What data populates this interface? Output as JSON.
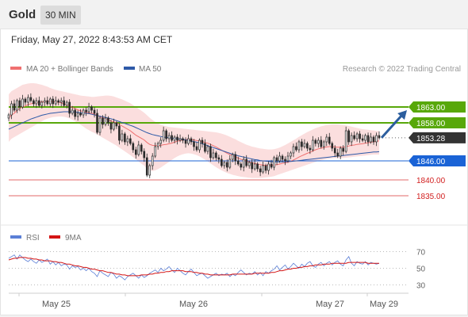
{
  "header": {
    "title": "Gold",
    "timeframe": "30 MIN"
  },
  "timestamp": "Friday, May 27, 2022 8:43:53 AM CET",
  "legend": {
    "ma20_label": "MA 20 + Bollinger Bands",
    "ma50_label": "MA 50",
    "copyright": "Research © 2022 Trading Central"
  },
  "colors": {
    "candle": "#2a2a2a",
    "ma20": "#f07070",
    "bollinger_fill": "#fbdede",
    "ma50": "#2e5aa8",
    "resistance": "#58a80a",
    "pivot": "#1a63d6",
    "support": "#e36a6a",
    "current": "#333333",
    "arrow": "#2c5e9e",
    "rsi": "#5b7fd6",
    "rsi_ma": "#d41515"
  },
  "rsi_legend": {
    "rsi_label": "RSI",
    "ma_label": "9MA"
  },
  "chart_data": [
    {
      "type": "candlestick",
      "ylim": [
        1829,
        1874
      ],
      "x_tick_labels": [
        "May 25",
        "May 26",
        "May 27",
        "May 29"
      ],
      "levels": [
        {
          "value": 1863.0,
          "label": "1863.00",
          "kind": "resistance"
        },
        {
          "value": 1858.0,
          "label": "1858.00",
          "kind": "resistance"
        },
        {
          "value": 1853.28,
          "label": "1853.28",
          "kind": "current"
        },
        {
          "value": 1846.0,
          "label": "1846.00",
          "kind": "pivot"
        },
        {
          "value": 1840.0,
          "label": "1840.00",
          "kind": "support"
        },
        {
          "value": 1835.0,
          "label": "1835.00",
          "kind": "support"
        }
      ],
      "close": [
        1860.5,
        1864.0,
        1862.0,
        1865.0,
        1863.0,
        1865.5,
        1864.5,
        1866.0,
        1865.0,
        1864.0,
        1865.0,
        1863.5,
        1864.5,
        1865.0,
        1864.0,
        1865.5,
        1864.0,
        1865.0,
        1864.5,
        1865.0,
        1863.5,
        1864.5,
        1861.0,
        1862.0,
        1860.0,
        1861.0,
        1860.5,
        1862.0,
        1861.5,
        1863.0,
        1862.0,
        1861.0,
        1855.0,
        1859.5,
        1857.5,
        1859.5,
        1858.0,
        1856.0,
        1858.0,
        1857.0,
        1852.5,
        1854.5,
        1852.0,
        1853.0,
        1851.5,
        1849.5,
        1848.0,
        1851.0,
        1849.0,
        1847.0,
        1841.5,
        1844.5,
        1847.5,
        1850.5,
        1851.5,
        1852.5,
        1855.5,
        1853.0,
        1854.0,
        1852.5,
        1853.5,
        1852.5,
        1853.0,
        1852.5,
        1851.5,
        1853.0,
        1852.0,
        1850.5,
        1849.5,
        1852.5,
        1851.5,
        1849.0,
        1850.5,
        1847.0,
        1848.5,
        1847.0,
        1846.5,
        1844.5,
        1845.5,
        1844.0,
        1846.5,
        1848.0,
        1846.0,
        1845.0,
        1844.0,
        1846.5,
        1844.5,
        1845.5,
        1843.5,
        1845.0,
        1843.5,
        1842.5,
        1844.5,
        1843.0,
        1845.0,
        1844.0,
        1847.0,
        1846.0,
        1847.5,
        1846.5,
        1846.0,
        1847.5,
        1848.5,
        1850.5,
        1849.5,
        1852.0,
        1850.5,
        1851.5,
        1850.0,
        1849.5,
        1852.5,
        1851.5,
        1852.5,
        1850.5,
        1852.0,
        1853.5,
        1851.5,
        1850.0,
        1848.5,
        1847.5,
        1850.0,
        1849.0,
        1855.5,
        1852.0,
        1854.0,
        1853.0,
        1854.5,
        1853.0,
        1852.5,
        1854.0,
        1852.0,
        1853.5,
        1852.0,
        1854.0,
        1853.28
      ],
      "ma20": [
        1859.5,
        1860.5,
        1861.0,
        1862.0,
        1862.5,
        1863.0,
        1863.3,
        1863.8,
        1864.0,
        1864.2,
        1864.4,
        1864.5,
        1864.6,
        1864.7,
        1864.8,
        1864.8,
        1864.7,
        1864.6,
        1864.5,
        1864.3,
        1864.0,
        1863.7,
        1863.3,
        1862.9,
        1862.5,
        1862.1,
        1861.8,
        1861.5,
        1861.3,
        1861.2,
        1861.0,
        1860.8,
        1860.3,
        1860.0,
        1859.6,
        1859.3,
        1859.0,
        1858.6,
        1858.3,
        1858.0,
        1857.5,
        1857.0,
        1856.5,
        1856.0,
        1855.5,
        1854.8,
        1854.1,
        1853.6,
        1853.1,
        1852.6,
        1851.8,
        1851.2,
        1850.9,
        1850.8,
        1850.8,
        1850.9,
        1851.1,
        1851.2,
        1851.4,
        1851.6,
        1851.9,
        1852.2,
        1852.4,
        1852.6,
        1852.7,
        1852.8,
        1852.7,
        1852.6,
        1852.4,
        1852.3,
        1852.1,
        1851.8,
        1851.6,
        1851.2,
        1850.8,
        1850.4,
        1849.9,
        1849.4,
        1848.9,
        1848.4,
        1848.0,
        1847.7,
        1847.3,
        1846.9,
        1846.5,
        1846.2,
        1845.9,
        1845.7,
        1845.4,
        1845.2,
        1845.0,
        1844.8,
        1844.7,
        1844.6,
        1844.6,
        1844.6,
        1844.7,
        1844.8,
        1845.0,
        1845.2,
        1845.4,
        1845.6,
        1845.9,
        1846.3,
        1846.7,
        1847.2,
        1847.6,
        1848.0,
        1848.4,
        1848.7,
        1849.1,
        1849.5,
        1849.8,
        1850.0,
        1850.2,
        1850.4,
        1850.5,
        1850.5,
        1850.4,
        1850.3,
        1850.3,
        1850.3,
        1850.5,
        1850.7,
        1850.9,
        1851.0,
        1851.2,
        1851.3,
        1851.4,
        1851.6,
        1851.7,
        1851.9,
        1852.0,
        1852.2,
        1852.3
      ],
      "bollinger_upper": [
        1867.0,
        1868.0,
        1868.5,
        1869.0,
        1869.5,
        1870.0,
        1870.2,
        1870.4,
        1870.5,
        1870.5,
        1870.4,
        1870.2,
        1870.0,
        1869.7,
        1869.4,
        1869.0,
        1868.7,
        1868.4,
        1868.2,
        1868.0,
        1867.8,
        1867.6,
        1867.4,
        1867.2,
        1867.0,
        1866.8,
        1866.6,
        1866.5,
        1866.4,
        1866.3,
        1866.2,
        1866.2,
        1866.3,
        1866.4,
        1866.5,
        1866.6,
        1866.6,
        1866.5,
        1866.3,
        1866.0,
        1865.7,
        1865.4,
        1865.0,
        1864.6,
        1864.2,
        1863.6,
        1863.0,
        1862.4,
        1861.8,
        1861.2,
        1860.4,
        1859.6,
        1858.9,
        1858.3,
        1857.8,
        1857.4,
        1857.1,
        1856.9,
        1856.7,
        1856.6,
        1856.5,
        1856.4,
        1856.3,
        1856.2,
        1856.1,
        1856.0,
        1855.9,
        1855.8,
        1855.7,
        1855.6,
        1855.5,
        1855.4,
        1855.3,
        1855.2,
        1855.1,
        1855.0,
        1854.8,
        1854.6,
        1854.3,
        1854.0,
        1853.6,
        1853.2,
        1852.8,
        1852.3,
        1851.9,
        1851.5,
        1851.1,
        1850.8,
        1850.5,
        1850.3,
        1850.1,
        1849.9,
        1849.8,
        1849.7,
        1849.6,
        1849.6,
        1849.7,
        1849.9,
        1850.2,
        1850.6,
        1851.0,
        1851.5,
        1852.0,
        1852.5,
        1853.0,
        1853.6,
        1854.1,
        1854.6,
        1855.1,
        1855.5,
        1855.9,
        1856.3,
        1856.6,
        1856.9,
        1857.1,
        1857.3,
        1857.4,
        1857.5,
        1857.5,
        1857.5,
        1857.4,
        1857.3,
        1857.2,
        1857.0,
        1856.8,
        1856.6,
        1856.4,
        1856.2,
        1856.0,
        1855.9,
        1855.8,
        1855.7,
        1855.6,
        1855.5,
        1855.4
      ],
      "bollinger_lower": [
        1852.0,
        1853.0,
        1853.5,
        1854.0,
        1854.5,
        1855.0,
        1855.5,
        1856.0,
        1856.5,
        1857.0,
        1857.5,
        1858.0,
        1858.5,
        1859.0,
        1859.3,
        1859.6,
        1859.8,
        1859.9,
        1860.0,
        1860.0,
        1859.9,
        1859.7,
        1859.4,
        1859.0,
        1858.5,
        1858.0,
        1857.4,
        1856.8,
        1856.2,
        1855.7,
        1855.2,
        1854.8,
        1854.3,
        1853.8,
        1853.3,
        1852.8,
        1852.3,
        1851.8,
        1851.3,
        1850.8,
        1850.2,
        1849.6,
        1849.0,
        1848.4,
        1847.8,
        1847.2,
        1846.5,
        1845.8,
        1845.1,
        1844.5,
        1843.5,
        1843.0,
        1842.8,
        1843.0,
        1843.4,
        1843.9,
        1844.5,
        1845.1,
        1845.7,
        1846.3,
        1846.9,
        1847.4,
        1847.8,
        1848.1,
        1848.3,
        1848.4,
        1848.3,
        1848.1,
        1847.8,
        1847.4,
        1846.9,
        1846.4,
        1845.8,
        1845.2,
        1844.6,
        1844.0,
        1843.5,
        1843.0,
        1842.6,
        1842.2,
        1841.9,
        1841.6,
        1841.4,
        1841.2,
        1841.0,
        1840.9,
        1840.8,
        1840.7,
        1840.6,
        1840.6,
        1840.6,
        1840.6,
        1840.7,
        1840.8,
        1840.9,
        1841.0,
        1841.2,
        1841.5,
        1841.8,
        1842.1,
        1842.4,
        1842.7,
        1843.0,
        1843.3,
        1843.6,
        1843.9,
        1844.2,
        1844.5,
        1844.8,
        1845.1,
        1845.4,
        1845.7,
        1846.0,
        1846.2,
        1846.4,
        1846.6,
        1846.7,
        1846.8,
        1846.9,
        1846.9,
        1846.9,
        1846.9,
        1847.0,
        1847.1,
        1847.2,
        1847.3,
        1847.4,
        1847.5,
        1847.6,
        1847.7,
        1847.8,
        1847.9,
        1848.0,
        1848.0,
        1848.0
      ],
      "ma50": [
        1856.0,
        1856.4,
        1856.8,
        1857.2,
        1857.6,
        1858.0,
        1858.4,
        1858.8,
        1859.2,
        1859.5,
        1859.8,
        1860.1,
        1860.4,
        1860.6,
        1860.8,
        1861.0,
        1861.1,
        1861.2,
        1861.3,
        1861.4,
        1861.5,
        1861.5,
        1861.5,
        1861.5,
        1861.4,
        1861.3,
        1861.2,
        1861.1,
        1861.0,
        1860.9,
        1860.7,
        1860.5,
        1860.3,
        1860.1,
        1859.9,
        1859.7,
        1859.5,
        1859.3,
        1859.0,
        1858.7,
        1858.4,
        1858.1,
        1857.8,
        1857.5,
        1857.2,
        1856.9,
        1856.5,
        1856.1,
        1855.7,
        1855.3,
        1854.9,
        1854.6,
        1854.3,
        1854.1,
        1853.9,
        1853.7,
        1853.5,
        1853.4,
        1853.3,
        1853.2,
        1853.1,
        1853.0,
        1852.9,
        1852.8,
        1852.6,
        1852.5,
        1852.3,
        1852.1,
        1851.9,
        1851.7,
        1851.4,
        1851.1,
        1850.8,
        1850.5,
        1850.2,
        1849.9,
        1849.6,
        1849.3,
        1849.0,
        1848.7,
        1848.4,
        1848.1,
        1847.9,
        1847.6,
        1847.4,
        1847.2,
        1847.0,
        1846.8,
        1846.6,
        1846.4,
        1846.3,
        1846.1,
        1846.0,
        1845.9,
        1845.8,
        1845.7,
        1845.7,
        1845.7,
        1845.7,
        1845.7,
        1845.7,
        1845.8,
        1845.8,
        1845.9,
        1846.0,
        1846.1,
        1846.2,
        1846.3,
        1846.4,
        1846.5,
        1846.6,
        1846.7,
        1846.8,
        1846.9,
        1847.0,
        1847.1,
        1847.2,
        1847.3,
        1847.4,
        1847.5,
        1847.6,
        1847.7,
        1847.8,
        1847.9,
        1848.0,
        1848.1,
        1848.2,
        1848.3,
        1848.4,
        1848.5,
        1848.6,
        1848.7,
        1848.8,
        1848.8,
        1848.9
      ]
    },
    {
      "type": "line",
      "title": "RSI",
      "ylim": [
        20,
        80
      ],
      "y_ticks": [
        70,
        50,
        30
      ],
      "series": [
        {
          "name": "RSI",
          "values": [
            62,
            64,
            66,
            61,
            66,
            63,
            60,
            58,
            61,
            58,
            56,
            60,
            57,
            59,
            61,
            55,
            58,
            54,
            57,
            53,
            55,
            54,
            49,
            53,
            51,
            52,
            48,
            50,
            47,
            50,
            46,
            44,
            40,
            47,
            44,
            42,
            40,
            45,
            43,
            38,
            41,
            39,
            36,
            40,
            42,
            44,
            41,
            38,
            42,
            39,
            41,
            44,
            46,
            48,
            45,
            50,
            47,
            49,
            52,
            48,
            45,
            50,
            47,
            44,
            42,
            46,
            49,
            45,
            41,
            43,
            44,
            41,
            38,
            40,
            42,
            44,
            41,
            43,
            42,
            44,
            40,
            43,
            41,
            45,
            48,
            45,
            42,
            44,
            43,
            46,
            42,
            45,
            41,
            46,
            44,
            47,
            49,
            53,
            48,
            51,
            54,
            49,
            52,
            56,
            53,
            50,
            55,
            52,
            56,
            58,
            53,
            51,
            55,
            57,
            53,
            56,
            58,
            54,
            57,
            59,
            55,
            53,
            60,
            64,
            56,
            53,
            58,
            56,
            55,
            58,
            54,
            57,
            56,
            55,
            56
          ]
        },
        {
          "name": "9MA",
          "values": [
            60,
            61,
            62,
            62,
            63,
            63,
            63,
            62,
            62,
            61,
            61,
            60,
            60,
            59,
            59,
            59,
            58,
            58,
            57,
            57,
            56,
            55,
            55,
            54,
            53,
            53,
            52,
            51,
            51,
            50,
            49,
            49,
            48,
            47,
            47,
            46,
            45,
            45,
            44,
            43,
            43,
            42,
            42,
            41,
            41,
            41,
            41,
            41,
            42,
            42,
            42,
            43,
            43,
            44,
            44,
            45,
            45,
            46,
            46,
            47,
            47,
            47,
            47,
            47,
            46,
            46,
            46,
            45,
            45,
            44,
            44,
            43,
            43,
            42,
            42,
            42,
            42,
            42,
            42,
            42,
            42,
            43,
            43,
            43,
            43,
            43,
            43,
            43,
            43,
            44,
            44,
            44,
            44,
            44,
            44,
            45,
            45,
            46,
            47,
            47,
            48,
            49,
            49,
            50,
            50,
            51,
            51,
            52,
            52,
            53,
            53,
            54,
            54,
            54,
            55,
            55,
            55,
            56,
            56,
            56,
            56,
            56,
            56,
            57,
            57,
            57,
            57,
            57,
            57,
            57,
            56,
            56,
            56,
            56,
            56
          ]
        }
      ]
    }
  ]
}
